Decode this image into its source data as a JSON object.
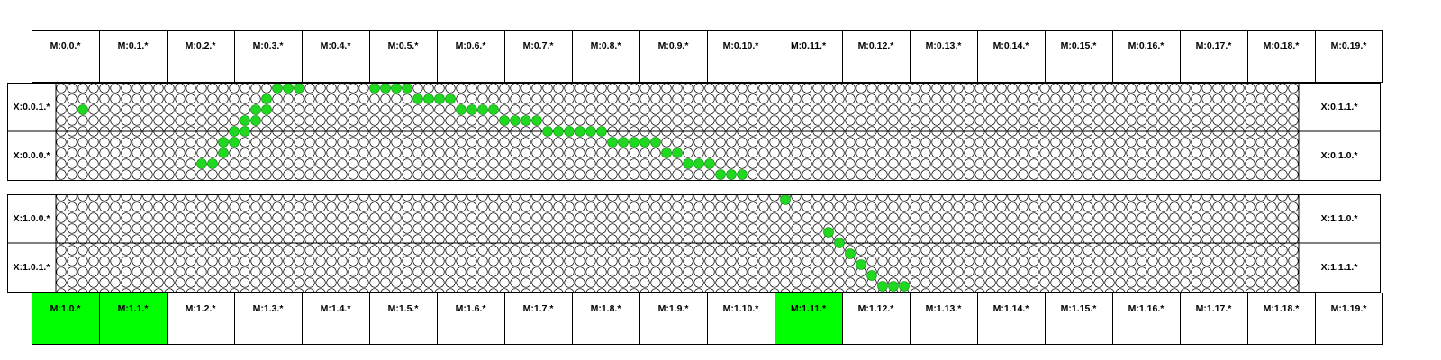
{
  "top_modules": [
    "M:0.0.*",
    "M:0.1.*",
    "M:0.2.*",
    "M:0.3.*",
    "M:0.4.*",
    "M:0.5.*",
    "M:0.6.*",
    "M:0.7.*",
    "M:0.8.*",
    "M:0.9.*",
    "M:0.10.*",
    "M:0.11.*",
    "M:0.12.*",
    "M:0.13.*",
    "M:0.14.*",
    "M:0.15.*",
    "M:0.16.*",
    "M:0.17.*",
    "M:0.18.*",
    "M:0.19.*"
  ],
  "bottom_modules": [
    "M:1.0.*",
    "M:1.1.*",
    "M:1.2.*",
    "M:1.3.*",
    "M:1.4.*",
    "M:1.5.*",
    "M:1.6.*",
    "M:1.7.*",
    "M:1.8.*",
    "M:1.9.*",
    "M:1.10.*",
    "M:1.11.*",
    "M:1.12.*",
    "M:1.13.*",
    "M:1.14.*",
    "M:1.15.*",
    "M:1.16.*",
    "M:1.17.*",
    "M:1.18.*",
    "M:1.19.*"
  ],
  "bottom_highlighted": [
    0,
    1,
    11
  ],
  "side_labels": {
    "left": [
      "X:0.0.1.*",
      "X:0.0.0.*",
      "X:1.0.0.*",
      "X:1.0.1.*"
    ],
    "right": [
      "X:0.1.1.*",
      "X:0.1.0.*",
      "X:1.1.0.*",
      "X:1.1.1.*"
    ]
  },
  "grid": {
    "cols": 115,
    "rows_per_panel": 18
  },
  "active_cells": {
    "top_panel": [
      [
        2,
        2
      ],
      [
        13,
        7
      ],
      [
        14,
        7
      ],
      [
        15,
        5
      ],
      [
        15,
        6
      ],
      [
        16,
        4
      ],
      [
        16,
        5
      ],
      [
        17,
        3
      ],
      [
        17,
        4
      ],
      [
        18,
        2
      ],
      [
        18,
        3
      ],
      [
        19,
        1
      ],
      [
        19,
        2
      ],
      [
        20,
        0
      ],
      [
        21,
        0
      ],
      [
        22,
        0
      ],
      [
        29,
        0
      ],
      [
        30,
        0
      ],
      [
        31,
        0
      ],
      [
        32,
        0
      ],
      [
        33,
        1
      ],
      [
        34,
        1
      ],
      [
        35,
        1
      ],
      [
        36,
        1
      ],
      [
        37,
        2
      ],
      [
        38,
        2
      ],
      [
        39,
        2
      ],
      [
        40,
        2
      ],
      [
        41,
        3
      ],
      [
        42,
        3
      ],
      [
        43,
        3
      ],
      [
        44,
        3
      ],
      [
        45,
        4
      ],
      [
        46,
        4
      ],
      [
        47,
        4
      ],
      [
        48,
        4
      ],
      [
        49,
        4
      ],
      [
        50,
        4
      ],
      [
        51,
        5
      ],
      [
        52,
        5
      ],
      [
        53,
        5
      ],
      [
        54,
        5
      ],
      [
        55,
        5
      ],
      [
        56,
        6
      ],
      [
        57,
        6
      ],
      [
        58,
        7
      ],
      [
        59,
        7
      ],
      [
        60,
        7
      ],
      [
        61,
        8
      ],
      [
        62,
        8
      ],
      [
        63,
        8
      ]
    ],
    "bottom_panel": [
      [
        67,
        0
      ],
      [
        71,
        3
      ],
      [
        72,
        4
      ],
      [
        73,
        5
      ],
      [
        74,
        6
      ],
      [
        75,
        7
      ],
      [
        76,
        8
      ],
      [
        77,
        8
      ],
      [
        78,
        8
      ]
    ]
  },
  "colors": {
    "active": "#1fd81f",
    "highlight": "#00ff00",
    "line": "#000000",
    "background": "#ffffff"
  }
}
